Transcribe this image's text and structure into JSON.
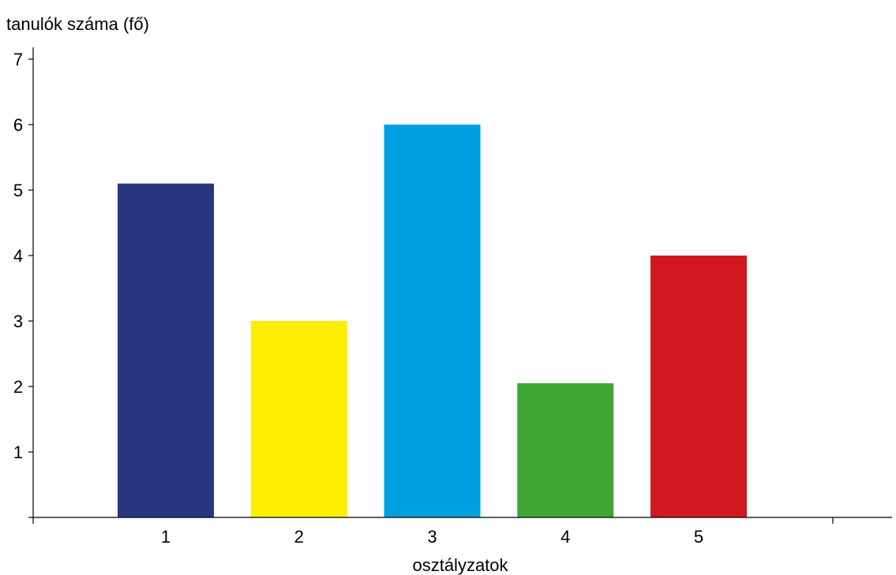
{
  "chart_data": {
    "type": "bar",
    "ylabel": "tanulók száma (fő)",
    "xlabel": "osztályzatok",
    "categories": [
      "1",
      "2",
      "3",
      "4",
      "5"
    ],
    "values": [
      5.1,
      3,
      6,
      2.05,
      4
    ],
    "colors": [
      "#29367f",
      "#ffed00",
      "#009fe3",
      "#3fa535",
      "#d0181e"
    ],
    "ylim": [
      0,
      7
    ],
    "y_ticks": [
      1,
      2,
      3,
      4,
      5,
      6,
      7
    ],
    "grid": false,
    "legend": "none"
  }
}
